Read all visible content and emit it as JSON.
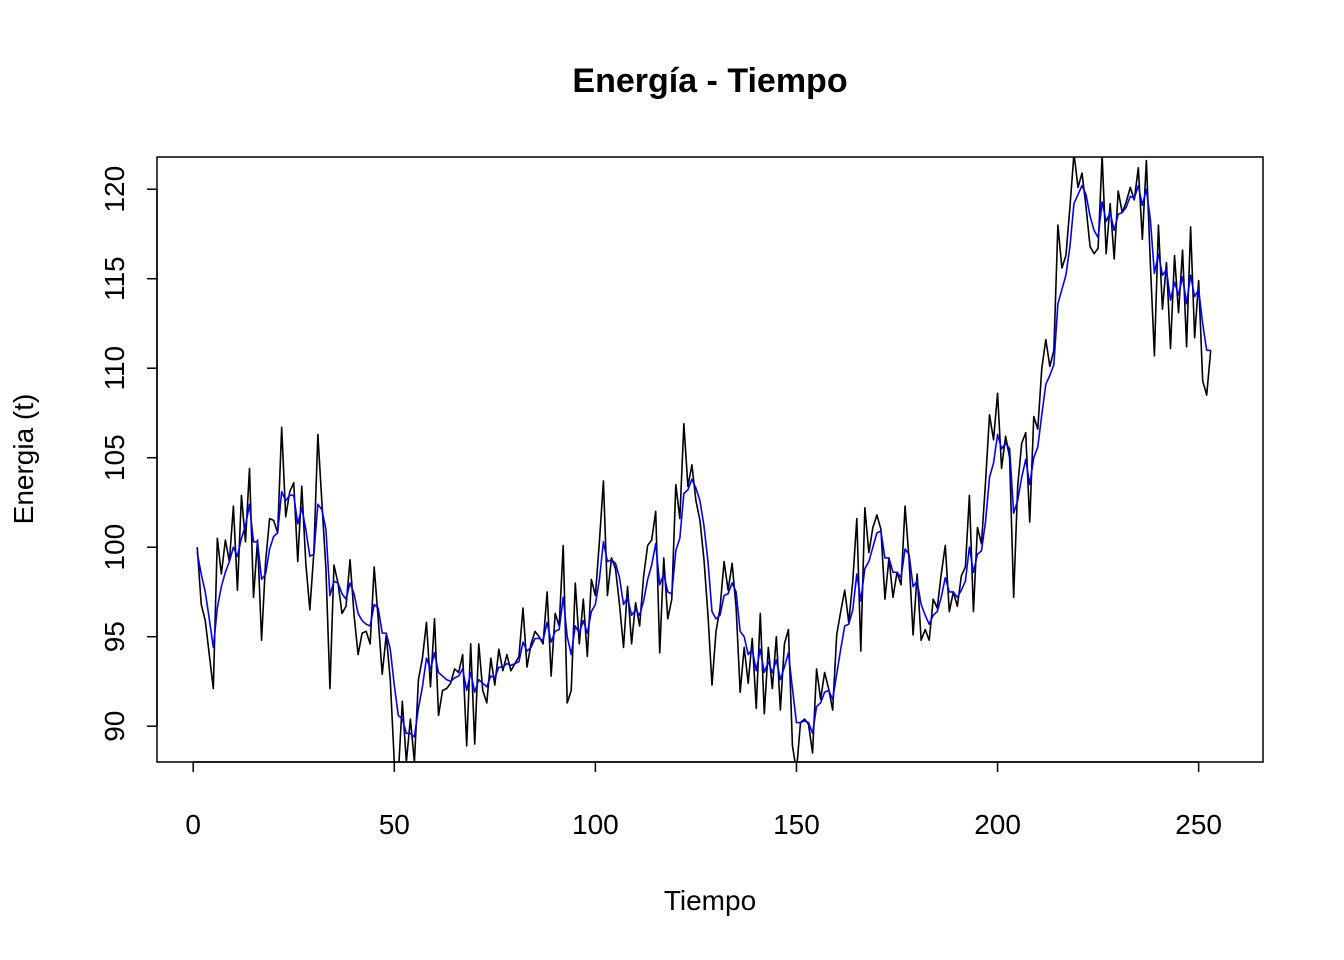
{
  "chart_data": {
    "type": "line",
    "title": "Energía - Tiempo",
    "xlabel": "Tiempo",
    "ylabel": "Energia (t)",
    "xlim": [
      -9,
      266
    ],
    "ylim": [
      88.0,
      121.8
    ],
    "x_ticks": [
      0,
      50,
      100,
      150,
      200,
      250
    ],
    "y_ticks": [
      90,
      95,
      100,
      105,
      110,
      115,
      120
    ],
    "grid": false,
    "legend": "none",
    "x_start": 1,
    "series": [
      {
        "color": "#000000",
        "values": [
          100.0,
          96.8,
          95.9,
          94.0,
          92.1,
          100.5,
          98.5,
          100.4,
          99.2,
          102.3,
          97.6,
          102.9,
          100.3,
          104.4,
          97.2,
          100.4,
          94.8,
          99.2,
          101.6,
          101.5,
          100.8,
          106.7,
          101.7,
          103.1,
          103.6,
          99.2,
          103.4,
          99.1,
          96.5,
          99.7,
          106.3,
          102.5,
          98.8,
          92.1,
          99.0,
          98.0,
          96.3,
          96.7,
          99.3,
          96.2,
          94.0,
          95.2,
          95.3,
          94.6,
          98.9,
          96.0,
          92.9,
          95.1,
          92.6,
          88.0,
          87.3,
          91.4,
          88.0,
          90.4,
          88.0,
          92.6,
          93.8,
          95.8,
          92.2,
          96.0,
          90.6,
          92.0,
          92.1,
          92.4,
          93.2,
          93.0,
          94.0,
          88.9,
          94.6,
          89.0,
          94.6,
          92.0,
          91.3,
          93.8,
          92.3,
          94.3,
          93.1,
          94.0,
          93.1,
          93.5,
          93.9,
          96.6,
          93.3,
          94.6,
          95.3,
          95.0,
          94.6,
          97.5,
          92.8,
          96.3,
          95.6,
          100.1,
          91.3,
          92.0,
          98.0,
          94.6,
          97.1,
          93.9,
          98.2,
          97.3,
          100.3,
          103.7,
          97.3,
          99.4,
          98.8,
          96.8,
          94.4,
          97.8,
          94.6,
          96.9,
          95.6,
          98.4,
          100.1,
          100.4,
          102.0,
          94.1,
          99.4,
          96.0,
          97.1,
          103.5,
          101.6,
          106.9,
          103.4,
          104.6,
          102.6,
          101.5,
          99.3,
          96.2,
          92.3,
          95.3,
          96.6,
          99.2,
          97.6,
          99.1,
          96.6,
          91.9,
          94.4,
          92.4,
          94.9,
          91.0,
          96.3,
          90.7,
          94.4,
          92.1,
          95.0,
          90.9,
          94.6,
          95.4,
          88.9,
          87.5,
          90.2,
          90.4,
          90.1,
          88.5,
          93.2,
          91.5,
          93.0,
          92.1,
          90.9,
          95.1,
          96.4,
          97.6,
          95.8,
          98.1,
          101.6,
          94.2,
          102.2,
          99.7,
          101.1,
          101.8,
          101.0,
          97.1,
          99.4,
          97.2,
          98.6,
          97.9,
          102.3,
          99.3,
          95.1,
          98.5,
          94.8,
          95.4,
          94.8,
          97.1,
          96.6,
          98.5,
          100.1,
          96.4,
          97.5,
          96.7,
          98.4,
          98.9,
          102.9,
          96.4,
          101.1,
          100.2,
          103.6,
          107.4,
          106.0,
          108.6,
          104.4,
          106.2,
          105.0,
          97.2,
          103.4,
          105.8,
          106.4,
          101.4,
          107.3,
          106.6,
          110.0,
          111.6,
          110.1,
          111.0,
          118.0,
          115.6,
          116.3,
          119.0,
          122.0,
          120.1,
          120.9,
          119.0,
          116.8,
          116.4,
          116.7,
          121.9,
          116.4,
          119.2,
          116.1,
          119.9,
          118.7,
          119.3,
          120.1,
          119.4,
          121.2,
          117.2,
          121.6,
          115.8,
          110.7,
          118.0,
          113.3,
          115.9,
          111.1,
          116.3,
          113.1,
          116.6,
          111.2,
          117.9,
          111.7,
          114.9,
          109.3,
          108.5,
          111.0
        ]
      },
      {
        "color": "#0000ff",
        "values": [
          99.7,
          98.5,
          97.5,
          96.0,
          94.4,
          96.6,
          97.8,
          98.6,
          99.2,
          100.0,
          99.5,
          100.5,
          101.2,
          102.4,
          100.3,
          100.3,
          98.2,
          98.5,
          99.9,
          100.6,
          100.8,
          103.1,
          102.6,
          102.9,
          102.9,
          101.3,
          102.2,
          101.0,
          99.5,
          99.6,
          102.4,
          102.1,
          101.0,
          97.3,
          98.1,
          98.0,
          97.4,
          97.1,
          98.0,
          97.4,
          96.3,
          95.9,
          95.7,
          95.6,
          96.8,
          96.6,
          95.2,
          95.2,
          94.3,
          92.3,
          90.6,
          90.4,
          89.6,
          89.6,
          89.4,
          91.0,
          92.2,
          93.8,
          93.2,
          94.1,
          93.0,
          92.8,
          92.6,
          92.5,
          92.7,
          92.8,
          93.2,
          92.0,
          93.0,
          91.9,
          92.6,
          92.4,
          92.2,
          92.8,
          92.7,
          93.3,
          93.3,
          93.5,
          93.4,
          93.5,
          93.6,
          94.7,
          94.2,
          94.4,
          94.9,
          94.9,
          94.8,
          95.8,
          94.7,
          95.3,
          95.4,
          97.2,
          95.0,
          94.0,
          95.6,
          95.2,
          95.9,
          95.2,
          96.4,
          96.8,
          98.2,
          100.3,
          99.2,
          99.3,
          99.1,
          98.3,
          96.8,
          97.2,
          96.2,
          96.5,
          96.2,
          97.0,
          98.2,
          99.0,
          100.2,
          97.9,
          98.5,
          97.5,
          97.4,
          99.8,
          100.5,
          103.0,
          103.2,
          103.8,
          103.3,
          102.6,
          101.2,
          99.2,
          96.4,
          96.0,
          96.2,
          97.3,
          97.4,
          98.0,
          97.5,
          95.3,
          95.0,
          94.0,
          94.3,
          93.1,
          94.3,
          93.0,
          93.6,
          93.0,
          93.7,
          92.6,
          93.3,
          94.1,
          92.1,
          90.2,
          90.2,
          90.3,
          90.2,
          89.6,
          91.1,
          91.3,
          91.9,
          92.0,
          91.5,
          92.9,
          94.3,
          95.6,
          95.7,
          96.5,
          98.5,
          97.0,
          98.8,
          99.2,
          100.0,
          100.8,
          100.9,
          99.4,
          99.4,
          98.6,
          98.6,
          98.3,
          99.9,
          99.6,
          97.8,
          98.1,
          96.8,
          96.2,
          95.7,
          96.2,
          96.4,
          97.2,
          98.3,
          97.5,
          97.5,
          97.2,
          97.6,
          98.1,
          100.0,
          98.6,
          99.6,
          99.8,
          101.4,
          103.9,
          104.7,
          106.3,
          105.5,
          105.8,
          105.5,
          101.9,
          102.6,
          103.9,
          104.9,
          103.5,
          105.0,
          105.6,
          107.4,
          109.1,
          109.6,
          110.2,
          113.6,
          114.4,
          115.2,
          116.8,
          119.2,
          119.7,
          120.2,
          119.7,
          118.5,
          117.7,
          117.3,
          119.3,
          118.2,
          118.7,
          117.7,
          118.6,
          118.7,
          119.0,
          119.6,
          119.5,
          120.2,
          119.1,
          120.0,
          118.3,
          115.3,
          116.4,
          115.2,
          115.5,
          113.8,
          114.8,
          114.1,
          115.1,
          113.6,
          115.2,
          114.0,
          114.4,
          112.5,
          111.0,
          111.0
        ]
      }
    ]
  }
}
